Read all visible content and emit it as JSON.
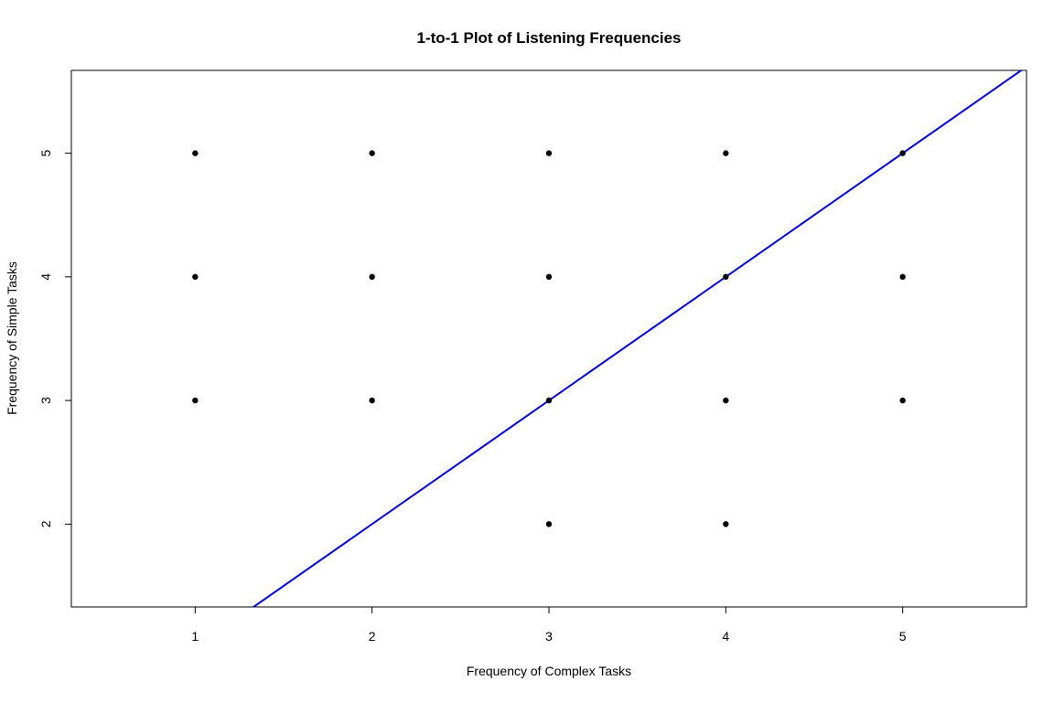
{
  "chart_data": {
    "type": "scatter",
    "title": "1-to-1 Plot of Listening Frequencies",
    "xlabel": "Frequency of Complex Tasks",
    "ylabel": "Frequency of Simple Tasks",
    "xlim": [
      0.3,
      5.7
    ],
    "ylim": [
      1.33,
      5.67
    ],
    "xticks": [
      "1",
      "2",
      "3",
      "4",
      "5"
    ],
    "yticks": [
      "2",
      "3",
      "4",
      "5"
    ],
    "grid": false,
    "points": [
      {
        "x": 1,
        "y": 5
      },
      {
        "x": 2,
        "y": 5
      },
      {
        "x": 3,
        "y": 5
      },
      {
        "x": 4,
        "y": 5
      },
      {
        "x": 5,
        "y": 5
      },
      {
        "x": 1,
        "y": 4
      },
      {
        "x": 2,
        "y": 4
      },
      {
        "x": 3,
        "y": 4
      },
      {
        "x": 4,
        "y": 4
      },
      {
        "x": 5,
        "y": 4
      },
      {
        "x": 1,
        "y": 3
      },
      {
        "x": 2,
        "y": 3
      },
      {
        "x": 3,
        "y": 3
      },
      {
        "x": 4,
        "y": 3
      },
      {
        "x": 5,
        "y": 3
      },
      {
        "x": 3,
        "y": 2
      },
      {
        "x": 4,
        "y": 2
      }
    ],
    "reference_line": {
      "intercept": 0,
      "slope": 1,
      "color": "#0000ee"
    },
    "point_color": "#000000"
  }
}
